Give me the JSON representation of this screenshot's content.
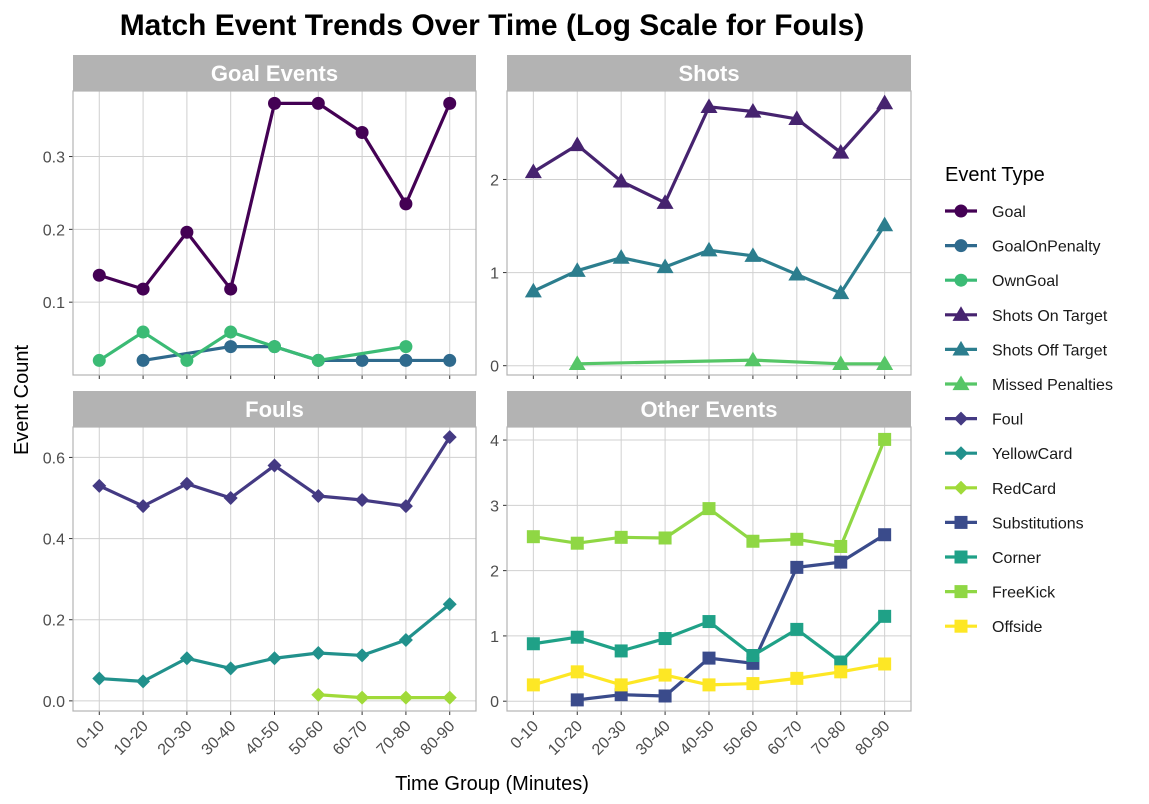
{
  "chart_data": {
    "type": "line",
    "title": "Match Event Trends Over Time (Log Scale for Fouls)",
    "xlabel": "Time Group (Minutes)",
    "ylabel": "Event Count",
    "categories": [
      "0-10",
      "10-20",
      "20-30",
      "30-40",
      "40-50",
      "50-60",
      "60-70",
      "70-80",
      "80-90"
    ],
    "legend": {
      "title": "Event Type",
      "position": "right",
      "items": [
        {
          "name": "Goal",
          "color": "#440154",
          "shape": "circle"
        },
        {
          "name": "GoalOnPenalty",
          "color": "#2f6a8d",
          "shape": "circle"
        },
        {
          "name": "OwnGoal",
          "color": "#3bbb75",
          "shape": "circle"
        },
        {
          "name": "Shots On Target",
          "color": "#46236f",
          "shape": "triangle"
        },
        {
          "name": "Shots Off Target",
          "color": "#2c7e8e",
          "shape": "triangle"
        },
        {
          "name": "Missed Penalties",
          "color": "#56c667",
          "shape": "triangle"
        },
        {
          "name": "Foul",
          "color": "#443a83",
          "shape": "diamond"
        },
        {
          "name": "YellowCard",
          "color": "#21918c",
          "shape": "diamond"
        },
        {
          "name": "RedCard",
          "color": "#a0da39",
          "shape": "diamond"
        },
        {
          "name": "Substitutions",
          "color": "#3a4b8b",
          "shape": "square"
        },
        {
          "name": "Corner",
          "color": "#1fa187",
          "shape": "square"
        },
        {
          "name": "FreeKick",
          "color": "#8fd744",
          "shape": "square"
        },
        {
          "name": "Offside",
          "color": "#fde725",
          "shape": "square"
        }
      ]
    },
    "panels": [
      {
        "title": "Goal Events",
        "ylim": [
          0,
          0.39
        ],
        "yticks": [
          0.1,
          0.2,
          0.3
        ],
        "ytick_labels": [
          "0.1",
          "0.2",
          "0.3"
        ],
        "series": [
          {
            "name": "Goal",
            "values": [
              0.137,
              0.118,
              0.196,
              0.118,
              0.373,
              0.373,
              0.333,
              0.235,
              0.373
            ]
          },
          {
            "name": "GoalOnPenalty",
            "values": [
              null,
              0.02,
              null,
              0.039,
              0.039,
              0.02,
              0.02,
              0.02,
              0.02
            ]
          },
          {
            "name": "OwnGoal",
            "values": [
              0.02,
              0.059,
              0.02,
              0.059,
              0.039,
              0.02,
              null,
              0.039,
              null
            ]
          }
        ]
      },
      {
        "title": "Shots",
        "ylim": [
          -0.1,
          2.95
        ],
        "yticks": [
          0,
          1,
          2
        ],
        "ytick_labels": [
          "0",
          "1",
          "2"
        ],
        "series": [
          {
            "name": "Shots On Target",
            "values": [
              2.08,
              2.37,
              1.98,
              1.75,
              2.78,
              2.73,
              2.65,
              2.29,
              2.82
            ]
          },
          {
            "name": "Shots Off Target",
            "values": [
              0.8,
              1.02,
              1.16,
              1.06,
              1.24,
              1.18,
              0.98,
              0.78,
              1.51
            ]
          },
          {
            "name": "Missed Penalties",
            "values": [
              null,
              0.02,
              null,
              null,
              null,
              0.06,
              null,
              0.02,
              0.02
            ]
          }
        ]
      },
      {
        "title": "Fouls",
        "ylim": [
          -0.025,
          0.675
        ],
        "yticks": [
          0.0,
          0.2,
          0.4,
          0.6
        ],
        "ytick_labels": [
          "0.0",
          "0.2",
          "0.4",
          "0.6"
        ],
        "series": [
          {
            "name": "Foul",
            "values": [
              0.53,
              0.48,
              0.535,
              0.5,
              0.58,
              0.505,
              0.495,
              0.48,
              0.65
            ]
          },
          {
            "name": "YellowCard",
            "values": [
              0.055,
              0.048,
              0.105,
              0.08,
              0.105,
              0.118,
              0.112,
              0.15,
              0.238
            ]
          },
          {
            "name": "RedCard",
            "values": [
              null,
              null,
              null,
              null,
              null,
              0.015,
              0.008,
              0.008,
              0.008
            ]
          }
        ]
      },
      {
        "title": "Other Events",
        "ylim": [
          -0.15,
          4.2
        ],
        "yticks": [
          0,
          1,
          2,
          3,
          4
        ],
        "ytick_labels": [
          "0",
          "1",
          "2",
          "3",
          "4"
        ],
        "series": [
          {
            "name": "Substitutions",
            "values": [
              null,
              0.02,
              0.1,
              0.08,
              0.66,
              0.58,
              2.05,
              2.13,
              2.55
            ]
          },
          {
            "name": "Corner",
            "values": [
              0.88,
              0.98,
              0.77,
              0.96,
              1.22,
              0.7,
              1.1,
              0.6,
              1.3
            ]
          },
          {
            "name": "FreeKick",
            "values": [
              2.52,
              2.42,
              2.51,
              2.5,
              2.95,
              2.45,
              2.48,
              2.37,
              4.01
            ]
          },
          {
            "name": "Offside",
            "values": [
              0.25,
              0.45,
              0.25,
              0.4,
              0.25,
              0.27,
              0.35,
              0.45,
              0.57
            ]
          }
        ]
      }
    ]
  }
}
